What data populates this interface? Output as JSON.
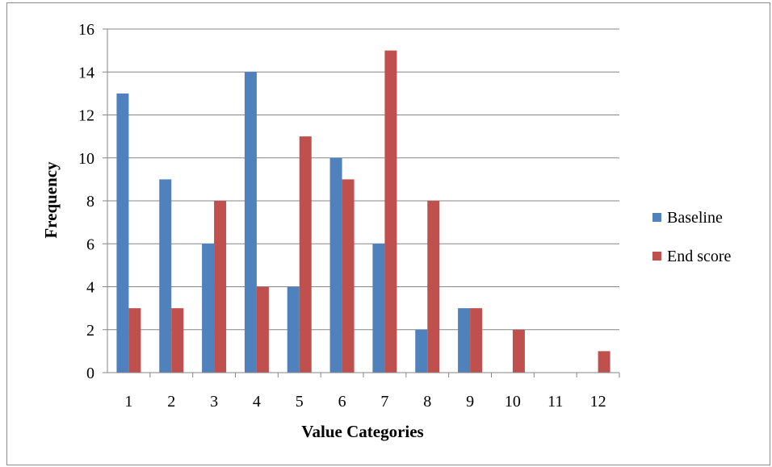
{
  "chart_data": {
    "type": "bar",
    "categories": [
      "1",
      "2",
      "3",
      "4",
      "5",
      "6",
      "7",
      "8",
      "9",
      "10",
      "11",
      "12"
    ],
    "series": [
      {
        "name": "Baseline",
        "color": "#4f81bd",
        "values": [
          13,
          9,
          6,
          14,
          4,
          10,
          6,
          2,
          3,
          0,
          0,
          0
        ]
      },
      {
        "name": "End score",
        "color": "#c0504d",
        "values": [
          3,
          3,
          8,
          4,
          11,
          9,
          15,
          8,
          3,
          2,
          0,
          1
        ]
      }
    ],
    "title": "",
    "xlabel": "Value Categories",
    "ylabel": "Frequency",
    "ylim": [
      0,
      16
    ],
    "yticks": [
      0,
      2,
      4,
      6,
      8,
      10,
      12,
      14,
      16
    ],
    "grid": true,
    "legend": "right"
  }
}
